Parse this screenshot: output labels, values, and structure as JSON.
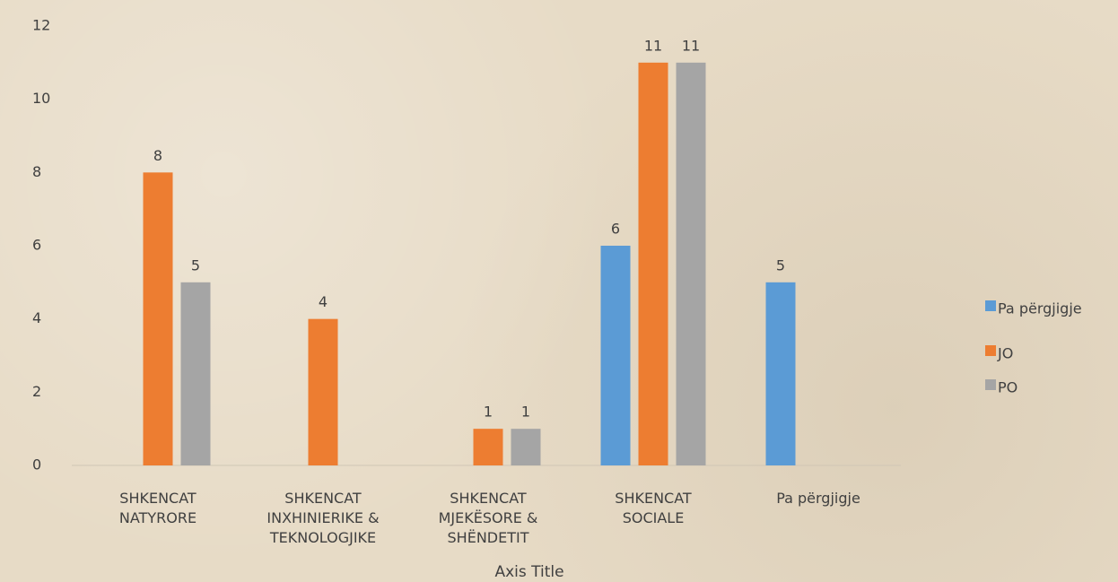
{
  "chart_data": {
    "type": "bar",
    "categories": [
      "SHKENCAT NATYRORE",
      "SHKENCAT INXHINIERIKE & TEKNOLOGJIKE",
      "SHKENCAT MJEKËSORE & SHËNDETIT",
      "SHKENCAT SOCIALE",
      "Pa përgjigje"
    ],
    "series": [
      {
        "name": "Pa përgjigje",
        "color": "#5b9bd5",
        "values": [
          null,
          null,
          null,
          6,
          5
        ]
      },
      {
        "name": "JO",
        "color": "#ed7d31",
        "values": [
          8,
          4,
          1,
          11,
          null
        ]
      },
      {
        "name": "PO",
        "color": "#a5a5a5",
        "values": [
          5,
          null,
          1,
          11,
          null
        ]
      }
    ],
    "x_axis_title": "Axis Title",
    "ylim": [
      0,
      12
    ],
    "yticks": [
      0,
      2,
      4,
      6,
      8,
      10,
      12
    ],
    "data_labels": true,
    "legend": "right"
  }
}
